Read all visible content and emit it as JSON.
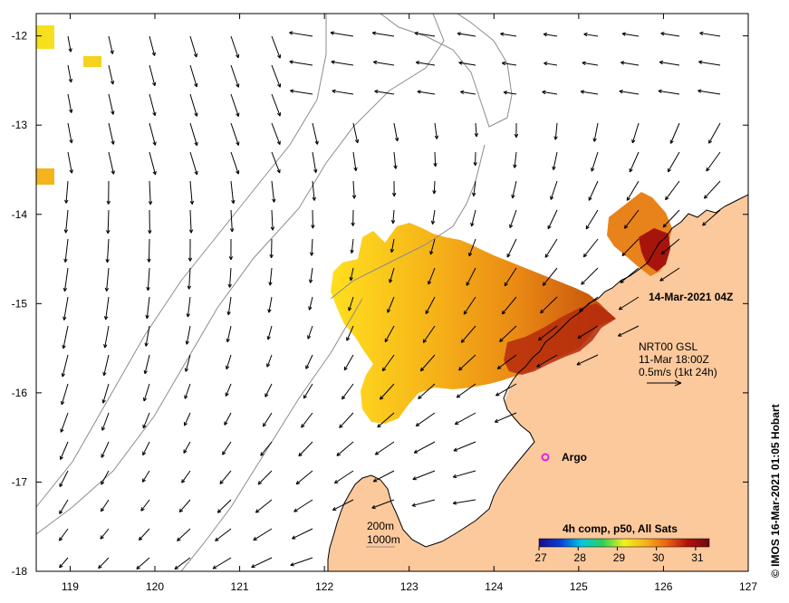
{
  "map": {
    "timestamp_label": "14-Mar-2021 04Z",
    "credit": "© IMOS 16-Mar-2021 01:05 Hobart",
    "lon_ticks": [
      "119",
      "120",
      "121",
      "122",
      "123",
      "124",
      "125",
      "126",
      "127"
    ],
    "lat_ticks": [
      "-12",
      "-13",
      "-14",
      "-15",
      "-16",
      "-17",
      "-18"
    ],
    "lon_range": [
      118.6,
      127.0
    ],
    "lat_range": [
      -11.75,
      -18.0
    ]
  },
  "current_legend": {
    "line1": "NRT00 GSL",
    "line2": "11-Mar 18:00Z",
    "line3": "0.5m/s (1kt 24h)"
  },
  "argo": {
    "label": "Argo",
    "lon": 124.6,
    "lat": -16.7,
    "color": "#e020e0"
  },
  "depth_legend": {
    "line1": "200m",
    "line2": "1000m"
  },
  "colorbar": {
    "title": "4h comp, p50, All Sats",
    "tick_labels": [
      "27",
      "28",
      "29",
      "30",
      "31"
    ],
    "stops": [
      "#1a0b8c",
      "#0a3dd8",
      "#00c8e0",
      "#2fcf5a",
      "#f2f21a",
      "#f7b21a",
      "#e86412",
      "#b0100c",
      "#6e0a0a"
    ]
  },
  "colors": {
    "land": "#fcc99c",
    "coast_line": "#000000",
    "isobath": "#8c8c8c"
  }
}
